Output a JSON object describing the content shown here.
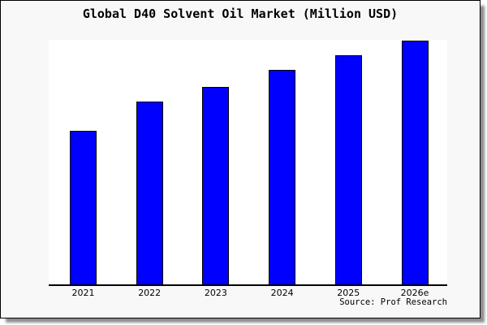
{
  "chart_data": {
    "type": "bar",
    "title": "Global D40 Solvent Oil Market (Million USD)",
    "categories": [
      "2021",
      "2022",
      "2023",
      "2024",
      "2025",
      "2026e"
    ],
    "values": [
      63,
      75,
      81,
      88,
      94,
      100
    ],
    "values_note": "y-axis is unlabeled in the image; values are estimated relative units with 2026e = 100",
    "xlabel": "",
    "ylabel": "",
    "ylim": [
      0,
      100
    ],
    "grid": false,
    "legend": false,
    "bar_color": "#0000FF",
    "bar_border_color": "#000000",
    "background_color": "#F8F8F8",
    "plot_background_color": "#FFFFFF",
    "source": "Source: Prof Research"
  }
}
